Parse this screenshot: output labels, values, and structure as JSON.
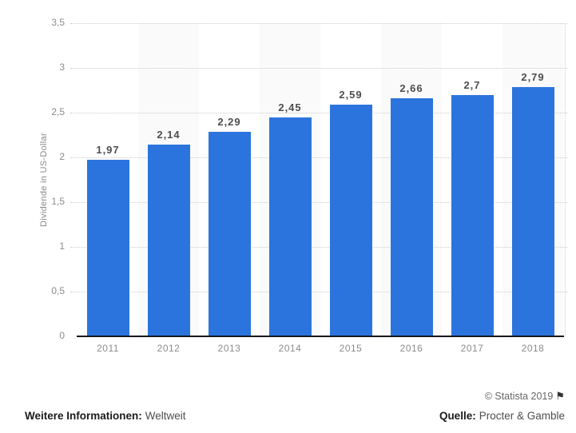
{
  "chart_data": {
    "type": "bar",
    "title": "",
    "categories": [
      "2011",
      "2012",
      "2013",
      "2014",
      "2015",
      "2016",
      "2017",
      "2018"
    ],
    "values": [
      1.97,
      2.14,
      2.29,
      2.45,
      2.59,
      2.66,
      2.7,
      2.79
    ],
    "value_labels": [
      "1,97",
      "2,14",
      "2,29",
      "2,45",
      "2,59",
      "2,66",
      "2,7",
      "2,79"
    ],
    "xlabel": "",
    "ylabel": "Dividende in US-Dollar",
    "ylim": [
      0,
      3.5
    ],
    "ytick_values": [
      0,
      0.5,
      1,
      1.5,
      2,
      2.5,
      3,
      3.5
    ],
    "ytick_labels": [
      "0",
      "0,5",
      "1",
      "1,5",
      "2",
      "2,5",
      "3",
      "3,5"
    ],
    "grid": "horizontal-dotted",
    "legend": "none",
    "colors": {
      "bar": "#2b74dd",
      "band": "#fafafa",
      "gridline": "#cccccc",
      "axis": "#17171f",
      "tick_text": "#8c8c8c",
      "value_text": "#4d4d4d"
    }
  },
  "footer": {
    "copyright": "© Statista 2019",
    "flag_icon": "⚑",
    "info_label": "Weitere Informationen:",
    "info_value": "Weltweit",
    "source_label": "Quelle:",
    "source_value": "Procter & Gamble"
  }
}
